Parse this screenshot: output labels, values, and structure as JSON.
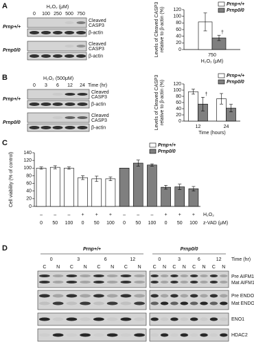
{
  "panels": {
    "a": {
      "letter": "A",
      "header": "H₂O₂ (μM)",
      "lanes": [
        "0",
        "100",
        "250",
        "500",
        "750"
      ],
      "genotypes": [
        "Prnp+/+",
        "Prnp0/0"
      ],
      "cleaved": [
        "Cleaved",
        "CASP3"
      ],
      "actin": "β-actin"
    },
    "b": {
      "letter": "B",
      "header": "H₂O₂ (500μM)",
      "lanes": [
        "0",
        "3",
        "6",
        "12",
        "24"
      ],
      "time_unit": "Time (hr)",
      "genotypes": [
        "Prnp+/+",
        "Prnp0/0"
      ],
      "cleaved": [
        "Cleaved",
        "CASP3"
      ],
      "actin": "β-actin"
    },
    "c": {
      "letter": "C"
    },
    "d": {
      "letter": "D",
      "genotypes": [
        "Prnp+/+",
        "Prnp0/0"
      ],
      "times": [
        "0",
        "3",
        "6",
        "12"
      ],
      "time_unit": "Time (hr)",
      "fractions": [
        "C",
        "N"
      ],
      "labels": [
        "Pre AIFM1",
        "Mat AIFM1",
        "Pre ENDOG",
        "Mat ENDOG",
        "ENO1",
        "HDAC2"
      ]
    }
  },
  "chart_data": [
    {
      "type": "bar",
      "y_label": [
        "Levels of Cleaved CASP3",
        "relative to β-actin (%)"
      ],
      "x_label": "H₂O₂ (μM)",
      "categories": [
        "750"
      ],
      "series": [
        {
          "name": "Prnp+/+",
          "color": "#ffffff",
          "values": [
            83
          ],
          "errors": [
            27
          ]
        },
        {
          "name": "Prnp0/0",
          "color": "#7f7f7f",
          "values": [
            35
          ],
          "errors": [
            8
          ],
          "annotations": [
            "†"
          ]
        }
      ],
      "ylim": [
        0,
        120
      ],
      "yticks": [
        0,
        20,
        40,
        60,
        80,
        100,
        120
      ]
    },
    {
      "type": "bar",
      "y_label": [
        "Levels of Cleaved CASP3",
        "relative to β-actin (%)"
      ],
      "x_label": "Time (hours)",
      "categories": [
        "12",
        "24"
      ],
      "series": [
        {
          "name": "Prnp+/+",
          "color": "#ffffff",
          "values": [
            95,
            72
          ],
          "errors": [
            8,
            17
          ]
        },
        {
          "name": "Prnp0/0",
          "color": "#7f7f7f",
          "values": [
            55,
            42
          ],
          "errors": [
            22,
            12
          ],
          "annotations": [
            "†",
            null
          ]
        }
      ],
      "ylim": [
        0,
        120
      ],
      "yticks": [
        0,
        20,
        40,
        60,
        80,
        100,
        120
      ]
    },
    {
      "type": "bar",
      "y_label": [
        "Cell viability (% of control)"
      ],
      "categories": [
        "0",
        "50",
        "100",
        "0",
        "50",
        "100",
        "0",
        "50",
        "100",
        "0",
        "50",
        "100"
      ],
      "h2o2": [
        "–",
        "–",
        "–",
        "+",
        "+",
        "+",
        "–",
        "–",
        "–",
        "+",
        "+",
        "+"
      ],
      "row_labels": [
        "H₂O₂",
        "z-VAD (μM)"
      ],
      "series": [
        {
          "name": "Prnp+/+",
          "color": "#ffffff",
          "values": [
            100,
            102,
            100,
            75,
            72,
            72,
            null,
            null,
            null,
            null,
            null,
            null
          ],
          "errors": [
            3,
            4,
            3,
            5,
            7,
            5,
            null,
            null,
            null,
            null,
            null,
            null
          ]
        },
        {
          "name": "Prnp0/0",
          "color": "#7f7f7f",
          "values": [
            null,
            null,
            null,
            null,
            null,
            null,
            100,
            113,
            108,
            50,
            51,
            46
          ],
          "errors": [
            null,
            null,
            null,
            null,
            null,
            null,
            null,
            8,
            3,
            5,
            7,
            6
          ]
        }
      ],
      "ylim": [
        0,
        140
      ],
      "yticks": [
        0,
        20,
        40,
        60,
        80,
        100,
        120,
        140
      ]
    }
  ]
}
